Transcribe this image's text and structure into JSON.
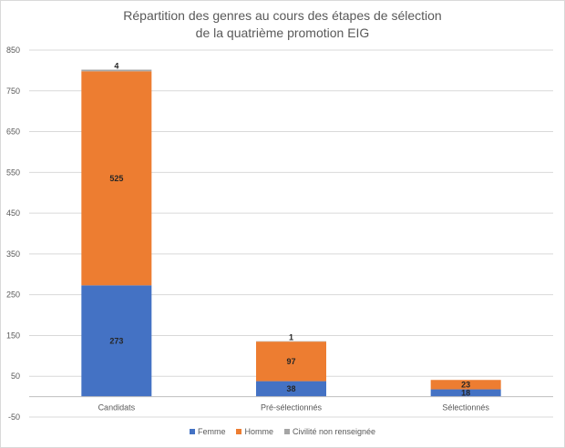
{
  "chart_data": {
    "type": "bar",
    "stacked": true,
    "title": [
      "Répartition des genres au cours des étapes de sélection",
      "de la quatrième promotion EIG"
    ],
    "categories": [
      "Candidats",
      "Pré-sélectionnés",
      "Sélectionnés"
    ],
    "series": [
      {
        "name": "Femme",
        "color": "#4472c4",
        "values": [
          273,
          38,
          18
        ]
      },
      {
        "name": "Homme",
        "color": "#ed7d31",
        "values": [
          525,
          97,
          23
        ]
      },
      {
        "name": "Civilité non renseignée",
        "color": "#a5a5a5",
        "values": [
          4,
          1,
          0
        ]
      }
    ],
    "data_labels": [
      [
        "273",
        "38",
        "18"
      ],
      [
        "525",
        "97",
        "23"
      ],
      [
        "4",
        "1",
        ""
      ]
    ],
    "ylim": [
      -50,
      850
    ],
    "yticks": [
      -50,
      50,
      150,
      250,
      350,
      450,
      550,
      650,
      750,
      850
    ],
    "grid": true,
    "legend_position": "bottom"
  }
}
